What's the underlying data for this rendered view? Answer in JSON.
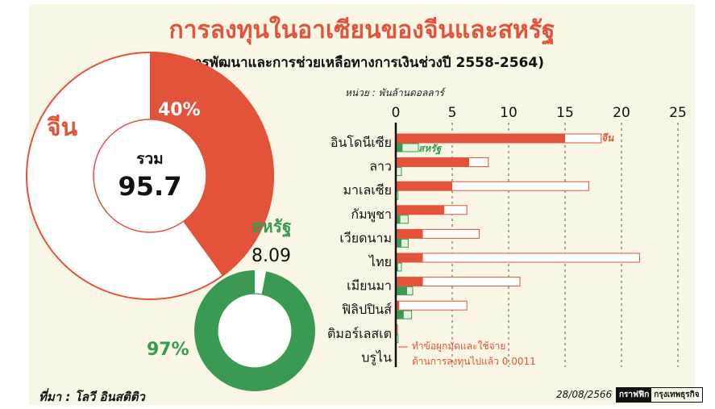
{
  "title": "การลงทุนในอาเซียนของจีนและสหรัฐ",
  "subtitle": "(การพัฒนาและการช่วยเหลือทางการเงินช่วงปี 2558-2564)",
  "unit_label": "หน่วย : พันล้านดอลลาร์",
  "source": "ที่มา : โลวี อินสติติว",
  "date": "28/08/2566",
  "brand": {
    "left": "กราฟฟิก",
    "right": "กรุงเทพธุรกิจ"
  },
  "colors": {
    "china": "#e2533a",
    "us": "#3a9a52",
    "us_light": "#e6f1e0",
    "background": "#faf6e6"
  },
  "chart_data": [
    {
      "type": "pie",
      "label": "จีน",
      "total_label": "รวม",
      "total": "95.7",
      "highlight_percent_label": "40%",
      "highlight_fraction": 0.4
    },
    {
      "type": "pie",
      "label": "สหรัฐ",
      "total": "8.09",
      "highlight_percent_label": "97%",
      "highlight_fraction": 0.97
    },
    {
      "type": "bar",
      "orientation": "horizontal",
      "xlim": [
        0,
        25
      ],
      "x_ticks": [
        "0",
        "5",
        "10",
        "15",
        "20",
        "25"
      ],
      "categories": [
        "อินโดนีเซีย",
        "ลาว",
        "มาเลเซีย",
        "กัมพูชา",
        "เวียดนาม",
        "ไทย",
        "เมียนมา",
        "ฟิลิปปินส์",
        "ติมอร์เลสเต",
        "บรูไน"
      ],
      "series": [
        {
          "name": "จีน",
          "values": [
            18.2,
            8.2,
            17.1,
            6.3,
            7.4,
            21.6,
            11.0,
            6.3,
            0.15,
            0.0011
          ]
        },
        {
          "name": "สหรัฐ",
          "values": [
            2.0,
            0.5,
            0.2,
            1.1,
            1.1,
            0.5,
            1.5,
            1.4,
            0.2,
            0.0
          ]
        }
      ],
      "china_inner_values": [
        15.0,
        6.5,
        5.0,
        4.3,
        2.4,
        2.4,
        2.4,
        0.3,
        0.0,
        0.0
      ],
      "us_inner_values": [
        0.6,
        0.0,
        0.0,
        0.4,
        0.5,
        0.2,
        1.0,
        0.7,
        0.0,
        0.0
      ],
      "annotation": [
        "ทำข้อผูกมัดและใช้จ่าย",
        "ด้านการลงทุนไปแล้ว 0.0011"
      ]
    }
  ]
}
